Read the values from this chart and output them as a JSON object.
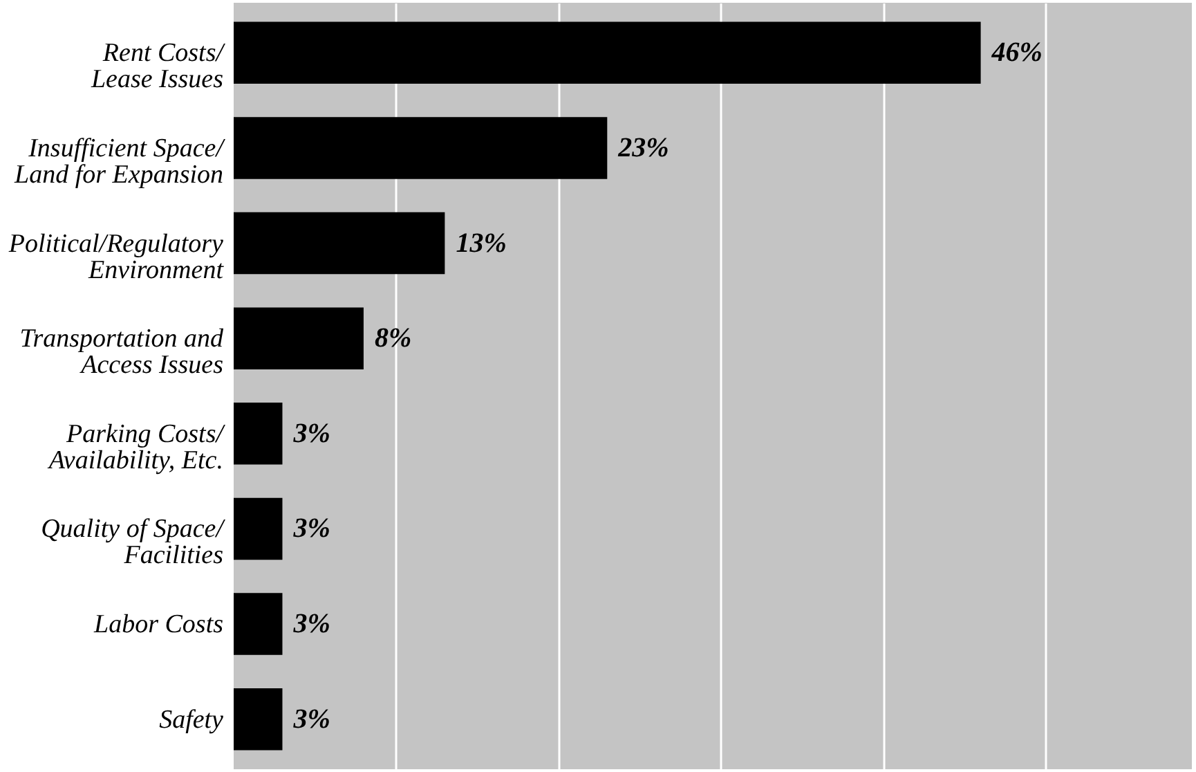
{
  "chart_data": {
    "type": "bar",
    "orientation": "horizontal",
    "categories": [
      "Rent Costs/\nLease Issues",
      "Insufficient Space/\nLand  for Expansion",
      "Political/Regulatory\nEnvironment",
      "Transportation and\nAccess Issues",
      "Parking Costs/\nAvailability, Etc.",
      "Quality of Space/\nFacilities",
      "Labor Costs",
      "Safety"
    ],
    "values": [
      46,
      23,
      13,
      8,
      3,
      3,
      3,
      3
    ],
    "value_labels": [
      "46%",
      "23%",
      "13%",
      "8%",
      "3%",
      "3%",
      "3%",
      "3%"
    ],
    "color": "#000000",
    "xlim": [
      0,
      59
    ],
    "xticks": [
      {
        "value": 10,
        "label": null
      },
      {
        "value": 20,
        "label": null
      },
      {
        "value": 30,
        "label": null
      },
      {
        "value": 40,
        "label": null
      },
      {
        "value": 50,
        "label": null
      }
    ],
    "grid": "x",
    "tick_labels": "y"
  }
}
